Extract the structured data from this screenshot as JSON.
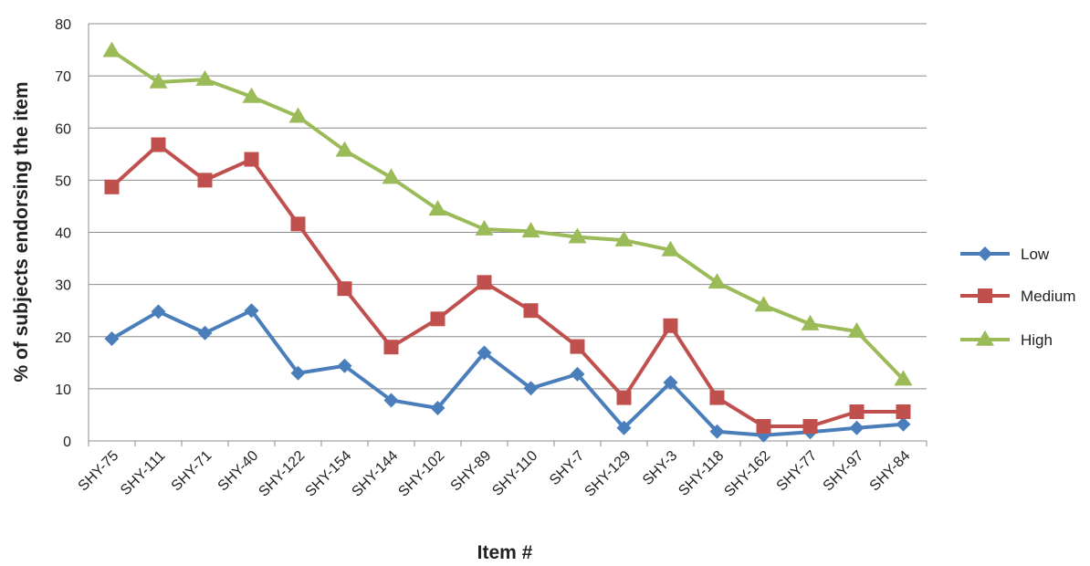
{
  "chart_data": {
    "type": "line",
    "title": "",
    "xlabel": "Item #",
    "ylabel": "% of subjects endorsing the item",
    "ylim": [
      0,
      80
    ],
    "yticks": [
      0,
      10,
      20,
      30,
      40,
      50,
      60,
      70,
      80
    ],
    "grid": true,
    "legend_position": "right",
    "categories": [
      "SHY-75",
      "SHY-111",
      "SHY-71",
      "SHY-40",
      "SHY-122",
      "SHY-154",
      "SHY-144",
      "SHY-102",
      "SHY-89",
      "SHY-110",
      "SHY-7",
      "SHY-129",
      "SHY-3",
      "SHY-118",
      "SHY-162",
      "SHY-77",
      "SHY-97",
      "SHY-84"
    ],
    "series": [
      {
        "name": "Low",
        "color": "#4a7ebb",
        "marker": "diamond",
        "values": [
          19.6,
          24.8,
          20.7,
          25.0,
          13.0,
          14.4,
          7.8,
          6.3,
          16.9,
          10.1,
          12.8,
          2.5,
          11.2,
          1.8,
          1.1,
          1.7,
          2.5,
          3.2
        ]
      },
      {
        "name": "Medium",
        "color": "#c0504d",
        "marker": "square",
        "values": [
          48.7,
          56.8,
          50.0,
          54.0,
          41.6,
          29.2,
          18.0,
          23.4,
          30.4,
          25.0,
          18.1,
          8.3,
          22.1,
          8.3,
          2.8,
          2.8,
          5.6,
          5.6
        ]
      },
      {
        "name": "High",
        "color": "#9bbb59",
        "marker": "triangle",
        "values": [
          74.8,
          68.8,
          69.3,
          66.0,
          62.2,
          55.7,
          50.5,
          44.4,
          40.6,
          40.2,
          39.1,
          38.5,
          36.6,
          30.4,
          26.0,
          22.4,
          21.0,
          11.8
        ]
      }
    ]
  }
}
